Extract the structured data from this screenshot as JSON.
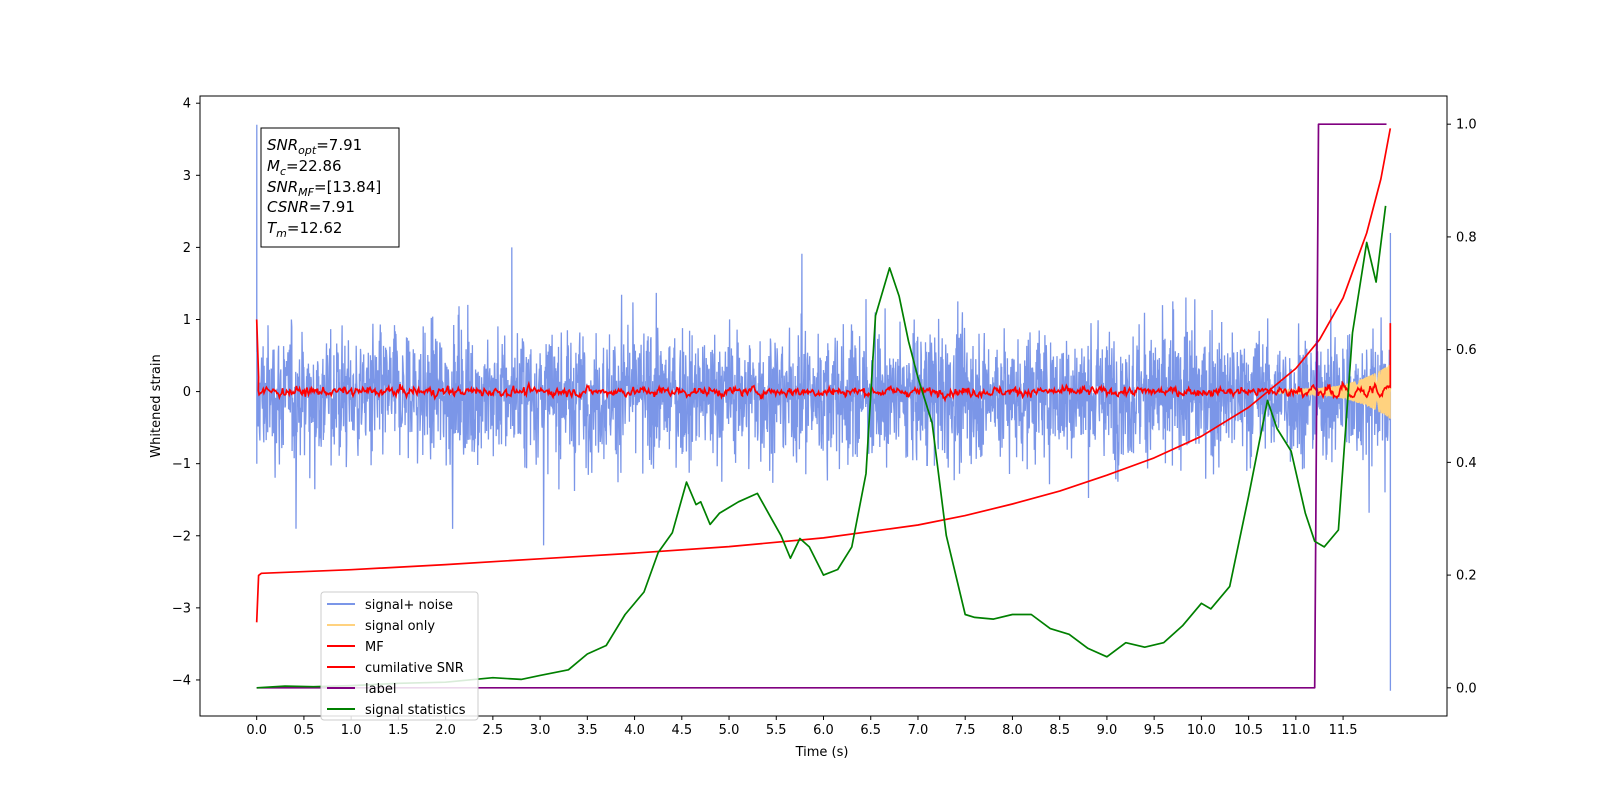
{
  "chart_data": {
    "type": "line",
    "xlabel": "Time (s)",
    "ylabel": "Whitened strain",
    "xlim": [
      -0.6,
      12.6
    ],
    "ylim": [
      -4.5,
      4.1
    ],
    "y2lim": [
      -0.05,
      1.05
    ],
    "xticks": [
      "0.0",
      "0.5",
      "1.0",
      "1.5",
      "2.0",
      "2.5",
      "3.0",
      "3.5",
      "4.0",
      "4.5",
      "5.0",
      "5.5",
      "6.0",
      "6.5",
      "7.0",
      "7.5",
      "8.0",
      "8.5",
      "9.0",
      "9.5",
      "10.0",
      "10.5",
      "11.0",
      "11.5"
    ],
    "yticks": [
      "4",
      "3",
      "2",
      "1",
      "0",
      "−1",
      "−2",
      "−3",
      "−4"
    ],
    "y2ticks": [
      "1.0",
      "0.8",
      "0.6",
      "0.4",
      "0.2",
      "0.0"
    ],
    "annotation": [
      {
        "label": "SNR",
        "sub": "opt",
        "value": "=7.91"
      },
      {
        "label": "M",
        "sub": "c",
        "value": "=22.86"
      },
      {
        "label": "SNR",
        "sub": "MF",
        "value": "=[13.84]"
      },
      {
        "label": "CSNR",
        "sub": "",
        "value": "=7.91"
      },
      {
        "label": "T",
        "sub": "m",
        "value": "=12.62"
      }
    ],
    "legend_position": "lower-left",
    "series": [
      {
        "name": "signal+ noise",
        "color": "#7b96e8",
        "axis": "left",
        "style": "noise",
        "x_range": [
          0,
          12
        ],
        "amplitude": 0.45,
        "peaks": [
          [
            0.0,
            3.7
          ],
          [
            0.0,
            -1.0
          ],
          [
            2.7,
            2.0
          ],
          [
            12.0,
            -4.15
          ],
          [
            12.0,
            2.2
          ]
        ]
      },
      {
        "name": "signal only",
        "color": "#ffd27f",
        "axis": "left",
        "style": "chirp",
        "x_range": [
          10.8,
          12
        ],
        "amplitude_end": 0.35
      },
      {
        "name": "MF",
        "color": "#ff0000",
        "axis": "left",
        "style": "small-noise",
        "x_range": [
          0,
          12
        ],
        "start_value": 1.0,
        "amplitude": 0.06
      },
      {
        "name": "cumilative SNR",
        "color": "#ff0000",
        "axis": "left",
        "x": [
          0.0,
          0.02,
          0.05,
          1.0,
          2.0,
          3.0,
          4.0,
          5.0,
          6.0,
          7.0,
          7.5,
          8.0,
          8.5,
          9.0,
          9.5,
          10.0,
          10.5,
          11.0,
          11.25,
          11.5,
          11.75,
          11.9,
          12.0
        ],
        "y": [
          -3.2,
          -2.55,
          -2.52,
          -2.47,
          -2.4,
          -2.32,
          -2.24,
          -2.15,
          -2.03,
          -1.85,
          -1.72,
          -1.56,
          -1.38,
          -1.16,
          -0.92,
          -0.62,
          -0.22,
          0.32,
          0.72,
          1.3,
          2.2,
          2.95,
          3.65
        ]
      },
      {
        "name": "label",
        "color": "#800080",
        "axis": "right",
        "x": [
          0.0,
          11.2,
          11.24,
          11.96
        ],
        "y": [
          0.0,
          0.0,
          1.0,
          1.0
        ]
      },
      {
        "name": "signal statistics",
        "color": "#008000",
        "axis": "right",
        "x": [
          0.0,
          0.3,
          0.6,
          1.0,
          1.5,
          2.0,
          2.5,
          2.8,
          3.0,
          3.3,
          3.5,
          3.7,
          3.9,
          4.1,
          4.25,
          4.4,
          4.55,
          4.65,
          4.7,
          4.8,
          4.9,
          5.0,
          5.1,
          5.3,
          5.45,
          5.55,
          5.65,
          5.75,
          5.85,
          6.0,
          6.15,
          6.3,
          6.45,
          6.55,
          6.7,
          6.8,
          6.9,
          7.0,
          7.15,
          7.3,
          7.5,
          7.6,
          7.8,
          8.0,
          8.2,
          8.4,
          8.6,
          8.8,
          9.0,
          9.2,
          9.4,
          9.6,
          9.8,
          10.0,
          10.1,
          10.3,
          10.5,
          10.7,
          10.8,
          10.95,
          11.1,
          11.2,
          11.3,
          11.45,
          11.6,
          11.75,
          11.85,
          11.95
        ],
        "y": [
          0.0,
          0.003,
          0.002,
          0.004,
          0.008,
          0.01,
          0.018,
          0.015,
          0.022,
          0.032,
          0.06,
          0.075,
          0.13,
          0.17,
          0.24,
          0.275,
          0.365,
          0.325,
          0.33,
          0.29,
          0.31,
          0.32,
          0.33,
          0.345,
          0.3,
          0.27,
          0.23,
          0.265,
          0.25,
          0.2,
          0.21,
          0.25,
          0.38,
          0.66,
          0.745,
          0.695,
          0.615,
          0.55,
          0.47,
          0.27,
          0.13,
          0.125,
          0.122,
          0.13,
          0.13,
          0.105,
          0.095,
          0.07,
          0.055,
          0.08,
          0.072,
          0.08,
          0.11,
          0.15,
          0.14,
          0.18,
          0.34,
          0.51,
          0.46,
          0.42,
          0.31,
          0.26,
          0.25,
          0.28,
          0.63,
          0.79,
          0.72,
          0.855
        ]
      }
    ]
  }
}
